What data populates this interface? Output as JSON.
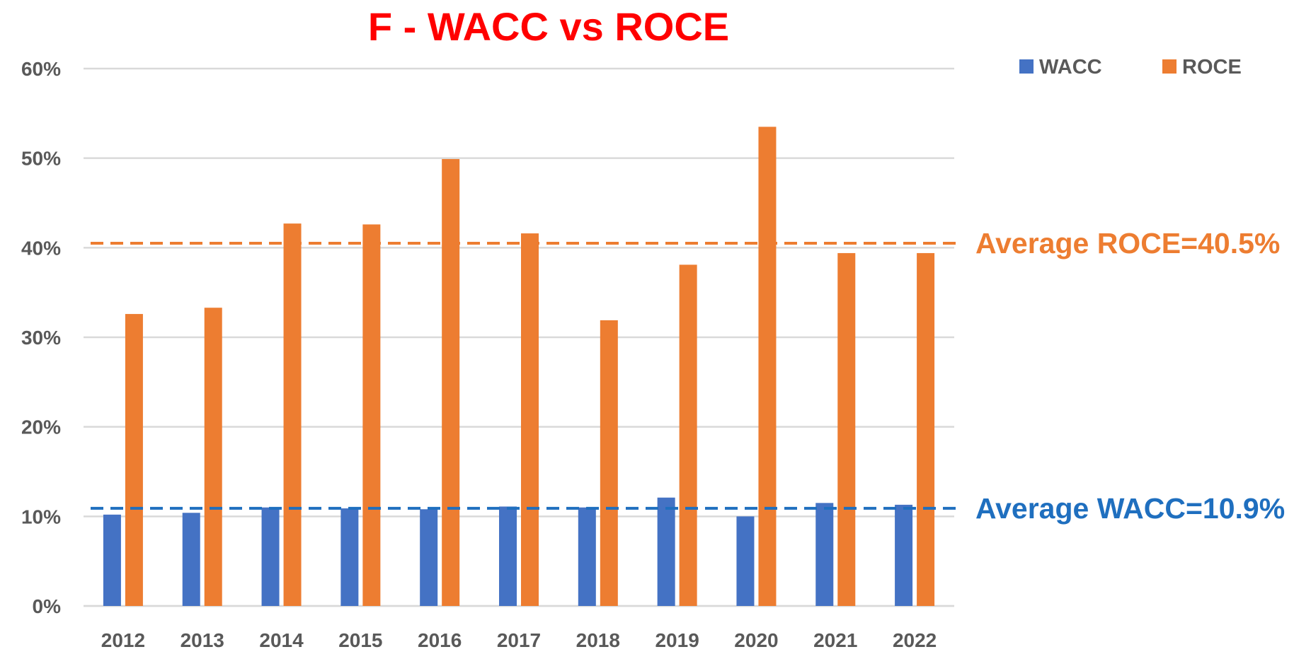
{
  "chart_data": {
    "type": "bar",
    "title": "F - WACC vs ROCE",
    "title_color": "#ff0000",
    "categories": [
      "2012",
      "2013",
      "2014",
      "2015",
      "2016",
      "2017",
      "2018",
      "2019",
      "2020",
      "2021",
      "2022"
    ],
    "series": [
      {
        "name": "WACC",
        "color": "#4472c4",
        "values": [
          10.2,
          10.4,
          11.0,
          10.9,
          10.8,
          11.1,
          11.0,
          12.1,
          10.0,
          11.5,
          11.3
        ]
      },
      {
        "name": "ROCE",
        "color": "#ed7d31",
        "values": [
          32.6,
          33.3,
          42.7,
          42.6,
          49.9,
          41.6,
          31.9,
          38.1,
          53.5,
          39.4,
          39.4
        ]
      }
    ],
    "ylim": [
      0,
      60
    ],
    "yticks": [
      "0%",
      "10%",
      "20%",
      "30%",
      "40%",
      "50%",
      "60%"
    ],
    "ytick_values": [
      0,
      10,
      20,
      30,
      40,
      50,
      60
    ],
    "grid": true,
    "legend_position": "top-right",
    "averages": [
      {
        "series": "ROCE",
        "value": 40.5,
        "label": "Average ROCE=40.5%",
        "color": "#ed7d31",
        "style": "dashed"
      },
      {
        "series": "WACC",
        "value": 10.9,
        "label": "Average WACC=10.9%",
        "color": "#1f6fbf",
        "style": "dashed"
      }
    ]
  }
}
